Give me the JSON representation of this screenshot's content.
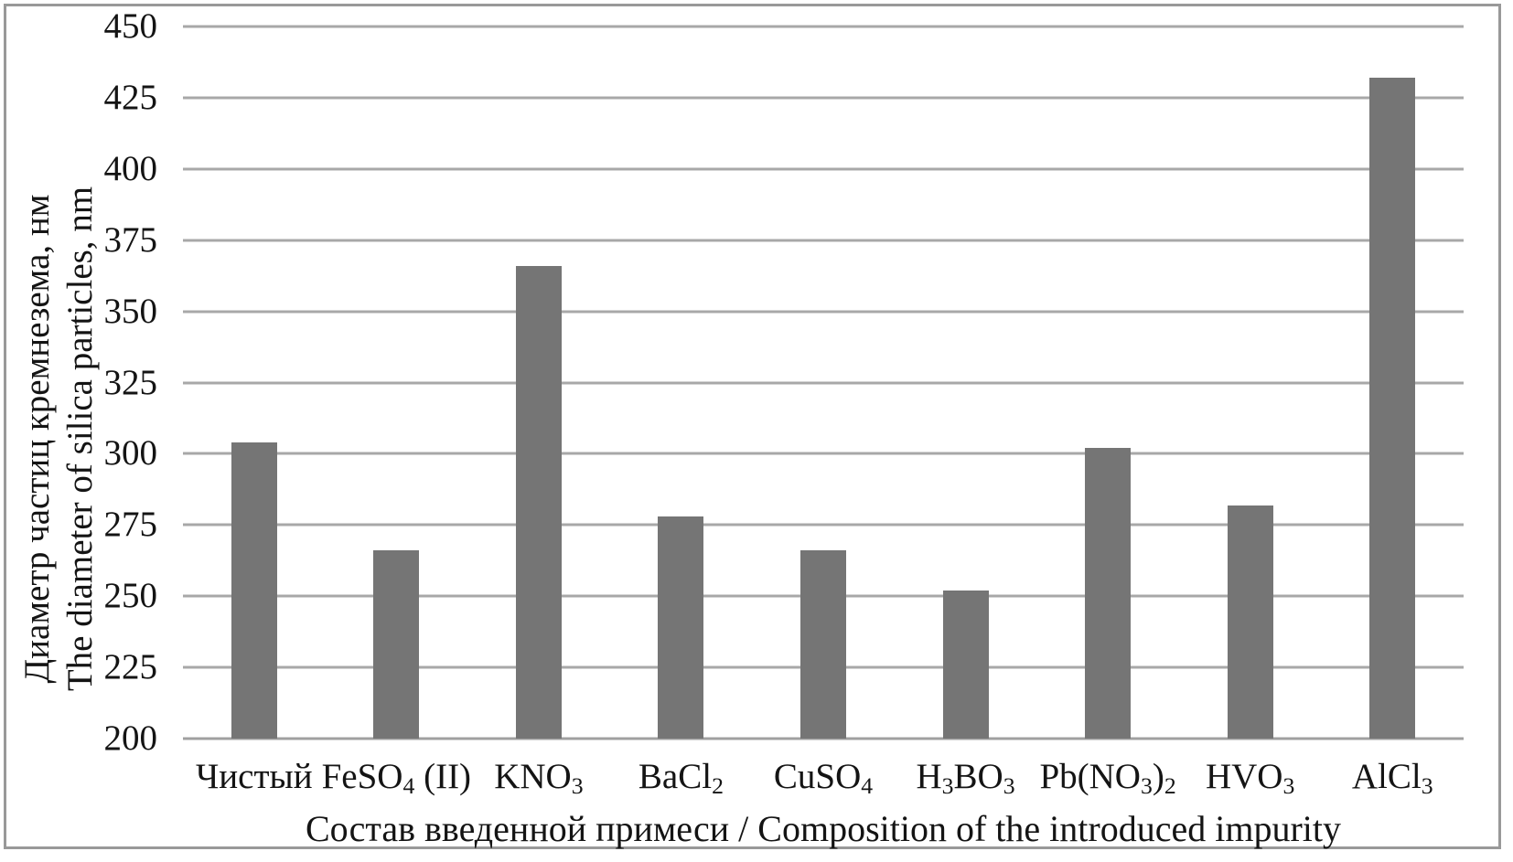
{
  "figure": {
    "y_axis_title_line1": "Диаметр частиц кремнезема, нм",
    "y_axis_title_line2": "The diameter of silica particles, nm",
    "x_axis_title": "Состав введенной примеси / Composition of the introduced impurity"
  },
  "colors": {
    "bar": "#757575",
    "gridline": "#a8a8a8",
    "baseline": "#a0a0a0",
    "frame_border": "#999999",
    "text": "#141414"
  },
  "chart_data": {
    "type": "bar",
    "title": "",
    "xlabel": "Состав введенной примеси / Composition of the introduced impurity",
    "ylabel": "Диаметр частиц кремнезема, нм / The diameter of silica particles, nm",
    "ylim": [
      200,
      450
    ],
    "ytick_step": 25,
    "yticks": [
      200,
      225,
      250,
      275,
      300,
      325,
      350,
      375,
      400,
      425,
      450
    ],
    "grid": "horizontal",
    "legend": false,
    "categories": [
      "Чистый",
      "FeSO4 (II)",
      "KNO3",
      "BaCl2",
      "CuSO4",
      "H3BO3",
      "Pb(NO3)2",
      "HVO3",
      "AlCl3"
    ],
    "category_parts": [
      [
        {
          "t": "Чистый"
        }
      ],
      [
        {
          "t": "FeSO"
        },
        {
          "s": "4"
        },
        {
          "t": " (II)"
        }
      ],
      [
        {
          "t": "KNO"
        },
        {
          "s": "3"
        }
      ],
      [
        {
          "t": "BaCl"
        },
        {
          "s": "2"
        }
      ],
      [
        {
          "t": "CuSO"
        },
        {
          "s": "4"
        }
      ],
      [
        {
          "t": "H"
        },
        {
          "s": "3"
        },
        {
          "t": "BO"
        },
        {
          "s": "3"
        }
      ],
      [
        {
          "t": "Pb(NO"
        },
        {
          "s": "3"
        },
        {
          "t": ")"
        },
        {
          "s": "2"
        }
      ],
      [
        {
          "t": "HVO"
        },
        {
          "s": "3"
        }
      ],
      [
        {
          "t": "AlCl"
        },
        {
          "s": "3"
        }
      ]
    ],
    "values": [
      304,
      266,
      366,
      278,
      266,
      252,
      302,
      282,
      432
    ]
  }
}
